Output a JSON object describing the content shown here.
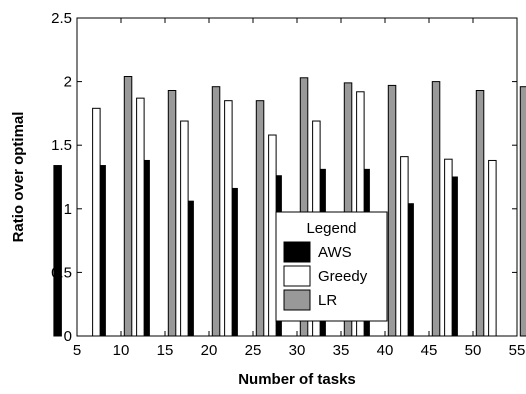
{
  "chart_data": {
    "type": "bar",
    "title": "",
    "xlabel": "Number of tasks",
    "ylabel": "Ratio over optimal",
    "xlim": [
      5,
      55
    ],
    "ylim": [
      0,
      2.5
    ],
    "xticks": [
      5,
      10,
      15,
      20,
      25,
      30,
      35,
      40,
      45,
      50,
      55
    ],
    "yticks": [
      0,
      0.5,
      1,
      1.5,
      2,
      2.5
    ],
    "ytick_labels": [
      "0",
      "0.5",
      "1",
      "1.5",
      "2",
      "2.5"
    ],
    "grid": false,
    "x": [
      5,
      10,
      15,
      20,
      25,
      30,
      35,
      40,
      45,
      50
    ],
    "series": [
      {
        "name": "AWS",
        "color": "#000000",
        "values": [
          1.34,
          1.34,
          1.38,
          1.06,
          1.16,
          1.26,
          1.31,
          1.31,
          1.04,
          1.25
        ]
      },
      {
        "name": "Greedy",
        "color": "#ffffff",
        "values": [
          1.79,
          1.87,
          1.69,
          1.85,
          1.58,
          1.69,
          1.92,
          1.41,
          1.39,
          1.38
        ]
      },
      {
        "name": "LR",
        "color": "#999999",
        "values": [
          2.04,
          1.93,
          1.96,
          1.85,
          2.03,
          1.99,
          1.97,
          2.0,
          1.93,
          1.96
        ]
      }
    ],
    "legend": {
      "title": "Legend",
      "placement": "center-right"
    }
  }
}
